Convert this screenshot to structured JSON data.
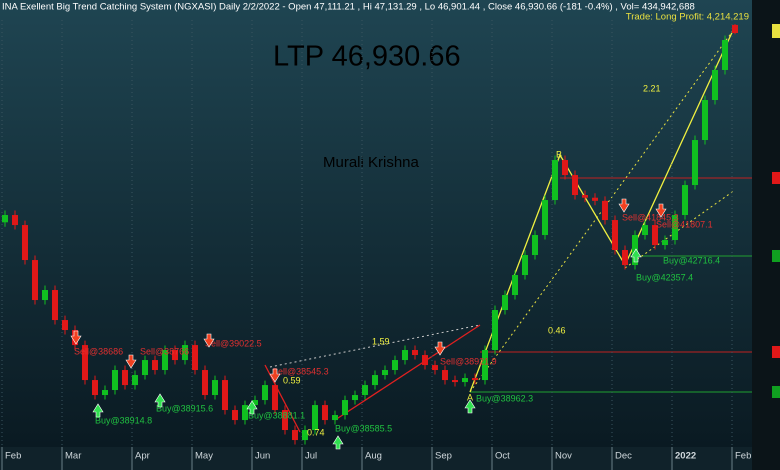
{
  "chart_data": {
    "type": "candlestick",
    "header": "INA Exellent Big Trend Catching System (NGXASI) Daily  2/2/2022  - Open 47,111.21 , Hi 47,131.29 , Lo 46,901.44 , Close 46,930.66 (-181 -0.4%) , Vol= 434,942,688",
    "title": "LTP 46,930.66",
    "subtitle": "Murali Krishna",
    "trade_note": "Trade: Long Profit: 4,214.219",
    "categories": [
      "Feb",
      null,
      null,
      null,
      null,
      null,
      "Mar",
      null,
      null,
      null,
      null,
      null,
      null,
      "Apr",
      null,
      null,
      null,
      null,
      null,
      "May",
      null,
      null,
      null,
      null,
      null,
      "Jun",
      null,
      null,
      null,
      null,
      "Jul",
      null,
      null,
      null,
      null,
      null,
      "Aug",
      null,
      null,
      null,
      null,
      null,
      null,
      "Sep",
      null,
      null,
      null,
      null,
      null,
      "Oct",
      null,
      null,
      null,
      null,
      null,
      "Nov",
      null,
      null,
      null,
      null,
      null,
      "Dec",
      null,
      null,
      null,
      null,
      null,
      "2022",
      null,
      null,
      null,
      null,
      null,
      "Feb"
    ],
    "open": [
      42700,
      42863,
      42639,
      41857,
      40963,
      41187,
      40516,
      40293,
      39957,
      39175,
      38840,
      38952,
      39399,
      39063,
      39287,
      39622,
      39399,
      39846,
      39622,
      39957,
      39399,
      38840,
      39175,
      38505,
      38281,
      38616,
      38728,
      39063,
      38505,
      38058,
      37834,
      38058,
      38616,
      38281,
      38393,
      38728,
      38840,
      39063,
      39287,
      39399,
      39622,
      39846,
      39734,
      39510,
      39399,
      39175,
      39130,
      39220,
      39175,
      39846,
      40740,
      41075,
      41522,
      41969,
      42416,
      43198,
      44092,
      43757,
      43310,
      43250,
      43180,
      42751,
      42081,
      41745,
      42416,
      42639,
      42192,
      42304,
      42863,
      43533,
      44539,
      45433,
      46104,
      47111.21
    ],
    "high": [
      42963,
      42963,
      42739,
      41957,
      41287,
      41287,
      40616,
      40393,
      40057,
      39275,
      39052,
      39499,
      39499,
      39387,
      39722,
      39722,
      39946,
      39946,
      40057,
      40057,
      39499,
      39275,
      39275,
      38605,
      38716,
      38828,
      39163,
      39163,
      38605,
      38158,
      38158,
      38716,
      38716,
      38493,
      38828,
      38940,
      39163,
      39387,
      39499,
      39722,
      39946,
      39946,
      39834,
      39610,
      39499,
      39275,
      39320,
      39320,
      39946,
      40840,
      41175,
      41622,
      42069,
      42516,
      43298,
      44192,
      44192,
      43857,
      43410,
      43350,
      43280,
      42851,
      42181,
      42516,
      42739,
      42739,
      42404,
      42963,
      43633,
      44639,
      45533,
      46204,
      46874,
      47131.29
    ],
    "low": [
      42600,
      42539,
      41757,
      40863,
      40863,
      40416,
      40193,
      39857,
      39075,
      38740,
      38740,
      38852,
      38963,
      38963,
      39187,
      39299,
      39299,
      39522,
      39522,
      39299,
      38740,
      38740,
      38405,
      38181,
      38181,
      38516,
      38628,
      38405,
      37958,
      37734,
      37734,
      37958,
      38181,
      38181,
      38293,
      38628,
      38740,
      38963,
      39187,
      39299,
      39522,
      39634,
      39410,
      39299,
      39075,
      39030,
      39030,
      39075,
      39075,
      39746,
      40640,
      40975,
      41422,
      41869,
      42316,
      43098,
      43657,
      43210,
      43150,
      43080,
      42651,
      41981,
      41645,
      41645,
      42316,
      42092,
      42092,
      42204,
      42763,
      43433,
      44439,
      45333,
      46004,
      46901.44
    ],
    "close": [
      42863,
      42639,
      41857,
      40963,
      41187,
      40516,
      40293,
      39957,
      39175,
      38840,
      38952,
      39399,
      39063,
      39287,
      39622,
      39399,
      39846,
      39622,
      39957,
      39399,
      38840,
      39175,
      38505,
      38281,
      38616,
      38728,
      39063,
      38505,
      38058,
      37834,
      38058,
      38616,
      38281,
      38393,
      38728,
      38840,
      39063,
      39287,
      39399,
      39622,
      39846,
      39734,
      39510,
      39399,
      39175,
      39130,
      39220,
      39175,
      39846,
      40740,
      41075,
      41522,
      41969,
      42416,
      43198,
      44092,
      43757,
      43310,
      43250,
      43180,
      42751,
      42081,
      41745,
      42416,
      42639,
      42192,
      42304,
      42863,
      43533,
      44539,
      45433,
      46104,
      46774,
      46930.66
    ],
    "up_color": "#10c020",
    "down_color": "#e01818",
    "ylim": [
      37500,
      47400
    ],
    "annotations": [
      "Sell@38686",
      "Sell@38766",
      "Sell@39022.5",
      "Sell@38545.3",
      "0.59",
      "1.59",
      "Sell@38921.9",
      "Buy@38914.8",
      "Buy@38915.6",
      "Buy@38881.1",
      "0.74",
      "Buy@38585.5",
      "Buy@38962.3",
      "2.21",
      "0.46",
      "B",
      "A",
      "Sell@41845.3",
      "Sell@41807.1",
      "Buy@42716.4",
      "Buy@42357.4"
    ]
  }
}
